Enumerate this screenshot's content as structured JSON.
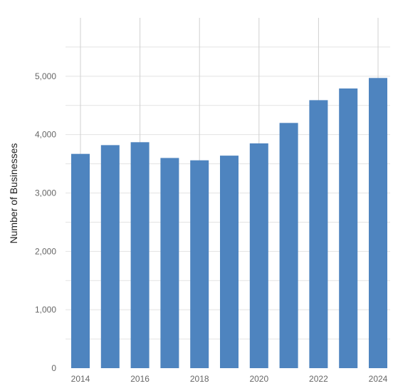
{
  "chart_data": {
    "type": "bar",
    "title": "",
    "xlabel": "",
    "ylabel": "Number of Businesses",
    "categories": [
      "2014",
      "2015",
      "2016",
      "2017",
      "2018",
      "2019",
      "2020",
      "2021",
      "2022",
      "2023",
      "2024"
    ],
    "series": [
      {
        "values": [
          3670,
          3820,
          3870,
          3600,
          3560,
          3640,
          3850,
          4200,
          4590,
          4790,
          4970
        ]
      }
    ],
    "x_tick_labels": [
      "2014",
      "2016",
      "2018",
      "2020",
      "2022",
      "2024"
    ],
    "y_ticks": [
      0,
      1000,
      2000,
      3000,
      4000,
      5000
    ],
    "y_tick_labels": [
      "0",
      "1,000",
      "2,000",
      "3,000",
      "4,000",
      "5,000"
    ],
    "ylim": [
      0,
      6000
    ],
    "grid": true,
    "legend": "none",
    "colors": {
      "bar": "#4e84bf",
      "grid": "#e3e3e3",
      "vertical_grid": "#d0d0d0",
      "tick_text": "#666666",
      "axis_title": "#222222"
    }
  }
}
